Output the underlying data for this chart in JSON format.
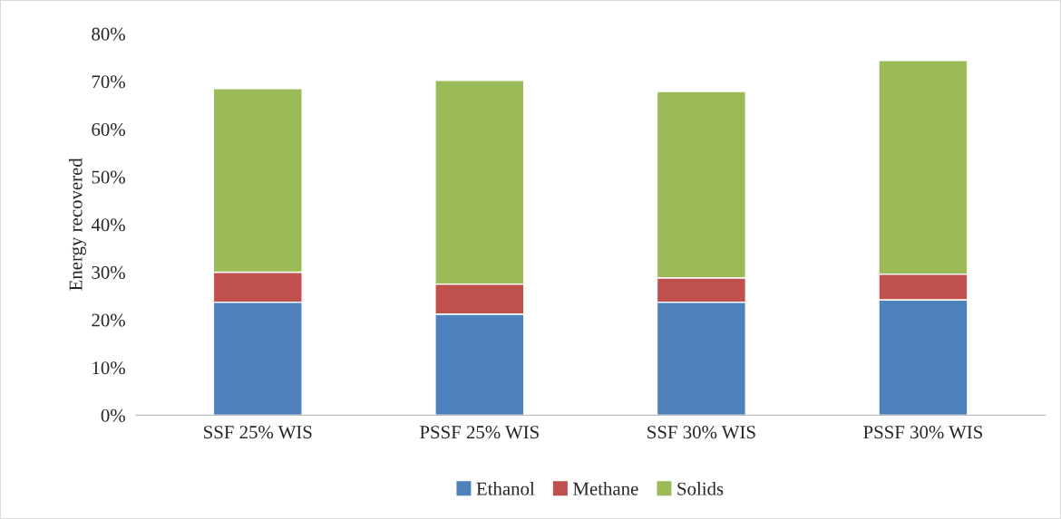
{
  "chart_data": {
    "type": "bar",
    "stacked": true,
    "ylabel": "Energy recovered",
    "categories": [
      "SSF 25% WIS",
      "PSSF 25% WIS",
      "SSF 30% WIS",
      "PSSF 30% WIS"
    ],
    "series": [
      {
        "name": "Ethanol",
        "color": "#4f81bd",
        "values": [
          23.7,
          21.2,
          23.7,
          24.2
        ]
      },
      {
        "name": "Methane",
        "color": "#c0504d",
        "values": [
          6.3,
          6.3,
          5.1,
          5.4
        ]
      },
      {
        "name": "Solids",
        "color": "#9bbb59",
        "values": [
          38.5,
          42.7,
          39.1,
          44.8
        ]
      }
    ],
    "ylim": [
      0,
      80
    ],
    "yticks": [
      {
        "value": 0,
        "label": "0%"
      },
      {
        "value": 10,
        "label": "10%"
      },
      {
        "value": 20,
        "label": "20%"
      },
      {
        "value": 30,
        "label": "30%"
      },
      {
        "value": 40,
        "label": "40%"
      },
      {
        "value": 50,
        "label": "50%"
      },
      {
        "value": 60,
        "label": "60%"
      },
      {
        "value": 70,
        "label": "70%"
      },
      {
        "value": 80,
        "label": "80%"
      }
    ],
    "grid": false,
    "legend": "bottom"
  }
}
